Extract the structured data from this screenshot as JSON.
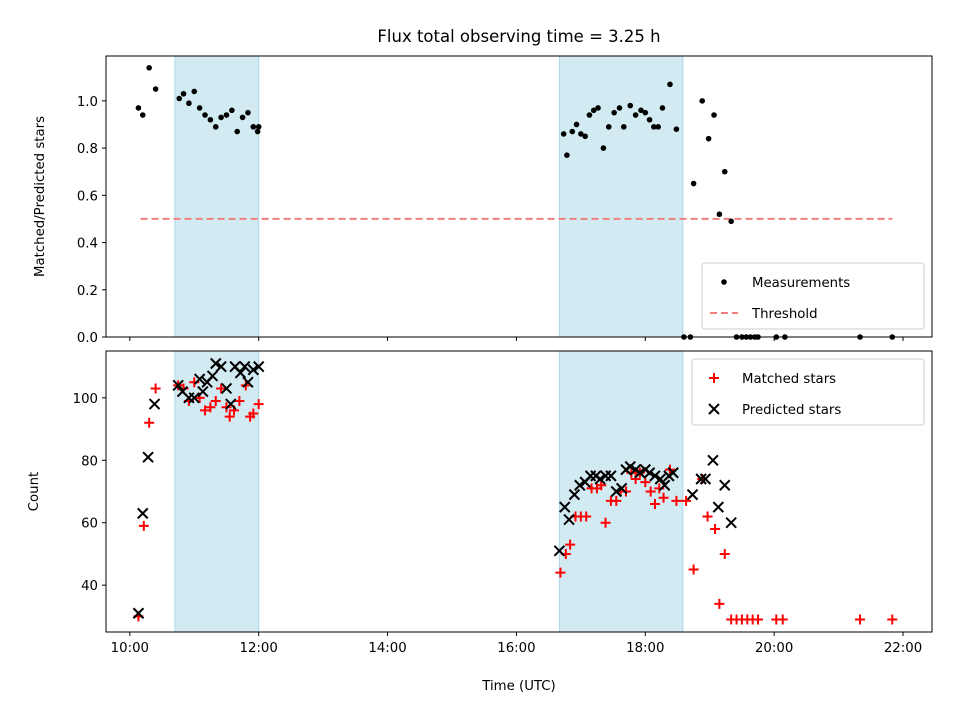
{
  "figure": {
    "title": "Flux total observing time = 3.25 h",
    "xlabel": "Time (UTC)"
  },
  "colors": {
    "span_fill": "#add8e6",
    "measurement": "#000000",
    "threshold": "#f08080",
    "matched": "#ff0000",
    "predicted": "#000000"
  },
  "chart_data": [
    {
      "type": "scatter",
      "panel": "top",
      "ylabel": "Matched/Predicted stars",
      "xlim_hours": [
        9.63,
        22.45
      ],
      "ylim": [
        0,
        1.19
      ],
      "yticks": [
        0.0,
        0.2,
        0.4,
        0.6,
        0.8,
        1.0
      ],
      "x_ticks": [
        "10:00",
        "12:00",
        "14:00",
        "16:00",
        "18:00",
        "20:00",
        "22:00"
      ],
      "grid": false,
      "legend_position": "lower-right",
      "legend": [
        "Measurements",
        "Threshold"
      ],
      "shaded_intervals": [
        [
          "10:42",
          "12:00"
        ],
        [
          "16:40",
          "18:35"
        ]
      ],
      "threshold": {
        "value": 0.5,
        "x_range": [
          "10:10",
          "21:50"
        ]
      },
      "series": [
        {
          "name": "Measurements",
          "marker": "dot",
          "points": [
            [
              "10:08",
              0.97
            ],
            [
              "10:12",
              0.94
            ],
            [
              "10:18",
              1.14
            ],
            [
              "10:24",
              1.05
            ],
            [
              "10:46",
              1.01
            ],
            [
              "10:50",
              1.03
            ],
            [
              "10:55",
              0.99
            ],
            [
              "11:00",
              1.04
            ],
            [
              "11:05",
              0.97
            ],
            [
              "11:10",
              0.94
            ],
            [
              "11:15",
              0.92
            ],
            [
              "11:20",
              0.89
            ],
            [
              "11:25",
              0.93
            ],
            [
              "11:30",
              0.94
            ],
            [
              "11:35",
              0.96
            ],
            [
              "11:40",
              0.87
            ],
            [
              "11:45",
              0.93
            ],
            [
              "11:50",
              0.95
            ],
            [
              "11:55",
              0.89
            ],
            [
              "11:59",
              0.87
            ],
            [
              "12:00",
              0.89
            ],
            [
              "16:44",
              0.86
            ],
            [
              "16:47",
              0.77
            ],
            [
              "16:52",
              0.87
            ],
            [
              "16:56",
              0.9
            ],
            [
              "17:00",
              0.86
            ],
            [
              "17:04",
              0.85
            ],
            [
              "17:08",
              0.94
            ],
            [
              "17:12",
              0.96
            ],
            [
              "17:16",
              0.97
            ],
            [
              "17:21",
              0.8
            ],
            [
              "17:26",
              0.89
            ],
            [
              "17:31",
              0.95
            ],
            [
              "17:36",
              0.97
            ],
            [
              "17:40",
              0.89
            ],
            [
              "17:46",
              0.98
            ],
            [
              "17:51",
              0.94
            ],
            [
              "17:56",
              0.96
            ],
            [
              "18:00",
              0.95
            ],
            [
              "18:04",
              0.92
            ],
            [
              "18:08",
              0.89
            ],
            [
              "18:12",
              0.89
            ],
            [
              "18:16",
              0.97
            ],
            [
              "18:23",
              1.07
            ],
            [
              "18:29",
              0.88
            ],
            [
              "18:45",
              0.65
            ],
            [
              "18:53",
              1.0
            ],
            [
              "18:59",
              0.84
            ],
            [
              "19:04",
              0.94
            ],
            [
              "19:09",
              0.52
            ],
            [
              "19:14",
              0.7
            ],
            [
              "19:20",
              0.49
            ],
            [
              "18:36",
              0.0
            ],
            [
              "18:42",
              0.0
            ],
            [
              "19:25",
              0.0
            ],
            [
              "19:30",
              0.0
            ],
            [
              "19:34",
              0.0
            ],
            [
              "19:38",
              0.0
            ],
            [
              "19:42",
              0.0
            ],
            [
              "19:45",
              0.0
            ],
            [
              "20:02",
              0.0
            ],
            [
              "20:10",
              0.0
            ],
            [
              "21:20",
              0.0
            ],
            [
              "21:50",
              0.0
            ]
          ]
        }
      ]
    },
    {
      "type": "scatter",
      "panel": "bottom",
      "ylabel": "Count",
      "xlim_hours": [
        9.63,
        22.45
      ],
      "ylim": [
        25,
        115
      ],
      "yticks": [
        40,
        60,
        80,
        100
      ],
      "x_ticks": [
        "10:00",
        "12:00",
        "14:00",
        "16:00",
        "18:00",
        "20:00",
        "22:00"
      ],
      "grid": false,
      "legend_position": "upper-right",
      "legend": [
        "Matched stars",
        "Predicted stars"
      ],
      "shaded_intervals": [
        [
          "10:42",
          "12:00"
        ],
        [
          "16:40",
          "18:35"
        ]
      ],
      "series": [
        {
          "name": "Matched stars",
          "marker": "plus",
          "points": [
            [
              "10:08",
              30
            ],
            [
              "10:13",
              59
            ],
            [
              "10:18",
              92
            ],
            [
              "10:24",
              103
            ],
            [
              "10:45",
              104
            ],
            [
              "10:50",
              103
            ],
            [
              "10:55",
              99
            ],
            [
              "11:00",
              105
            ],
            [
              "11:05",
              100
            ],
            [
              "11:10",
              96
            ],
            [
              "11:15",
              97
            ],
            [
              "11:20",
              99
            ],
            [
              "11:25",
              103
            ],
            [
              "11:30",
              97
            ],
            [
              "11:33",
              94
            ],
            [
              "11:37",
              96
            ],
            [
              "11:42",
              99
            ],
            [
              "11:48",
              104
            ],
            [
              "11:52",
              94
            ],
            [
              "11:55",
              95
            ],
            [
              "12:00",
              98
            ],
            [
              "16:41",
              44
            ],
            [
              "16:46",
              50
            ],
            [
              "16:50",
              53
            ],
            [
              "16:55",
              62
            ],
            [
              "17:00",
              62
            ],
            [
              "17:05",
              62
            ],
            [
              "17:10",
              71
            ],
            [
              "17:15",
              71
            ],
            [
              "17:19",
              72
            ],
            [
              "17:23",
              60
            ],
            [
              "17:28",
              67
            ],
            [
              "17:33",
              67
            ],
            [
              "17:37",
              70
            ],
            [
              "17:42",
              70
            ],
            [
              "17:47",
              76
            ],
            [
              "17:51",
              74
            ],
            [
              "17:55",
              76
            ],
            [
              "18:00",
              73
            ],
            [
              "18:05",
              70
            ],
            [
              "18:09",
              66
            ],
            [
              "18:13",
              71
            ],
            [
              "18:17",
              68
            ],
            [
              "18:23",
              77
            ],
            [
              "18:29",
              67
            ],
            [
              "18:38",
              67
            ],
            [
              "18:45",
              45
            ],
            [
              "18:53",
              74
            ],
            [
              "18:58",
              62
            ],
            [
              "19:05",
              58
            ],
            [
              "19:09",
              34
            ],
            [
              "19:14",
              50
            ],
            [
              "19:20",
              29
            ],
            [
              "19:25",
              29
            ],
            [
              "19:30",
              29
            ],
            [
              "19:35",
              29
            ],
            [
              "19:40",
              29
            ],
            [
              "19:45",
              29
            ],
            [
              "20:02",
              29
            ],
            [
              "20:08",
              29
            ],
            [
              "21:20",
              29
            ],
            [
              "21:50",
              29
            ]
          ]
        },
        {
          "name": "Predicted stars",
          "marker": "x",
          "points": [
            [
              "10:08",
              31
            ],
            [
              "10:12",
              63
            ],
            [
              "10:17",
              81
            ],
            [
              "10:23",
              98
            ],
            [
              "10:45",
              104
            ],
            [
              "10:49",
              102
            ],
            [
              "10:55",
              100
            ],
            [
              "11:00",
              100
            ],
            [
              "11:05",
              106
            ],
            [
              "11:08",
              102
            ],
            [
              "11:12",
              105
            ],
            [
              "11:17",
              107
            ],
            [
              "11:20",
              111
            ],
            [
              "11:25",
              110
            ],
            [
              "11:30",
              103
            ],
            [
              "11:34",
              98
            ],
            [
              "11:38",
              110
            ],
            [
              "11:43",
              108
            ],
            [
              "11:47",
              110
            ],
            [
              "11:50",
              105
            ],
            [
              "11:55",
              109
            ],
            [
              "12:00",
              110
            ],
            [
              "16:40",
              51
            ],
            [
              "16:45",
              65
            ],
            [
              "16:49",
              61
            ],
            [
              "16:54",
              69
            ],
            [
              "16:59",
              72
            ],
            [
              "17:04",
              73
            ],
            [
              "17:09",
              75
            ],
            [
              "17:14",
              75
            ],
            [
              "17:18",
              74
            ],
            [
              "17:23",
              75
            ],
            [
              "17:28",
              75
            ],
            [
              "17:33",
              70
            ],
            [
              "17:38",
              71
            ],
            [
              "17:42",
              77
            ],
            [
              "17:46",
              78
            ],
            [
              "17:51",
              77
            ],
            [
              "17:55",
              76
            ],
            [
              "18:00",
              77
            ],
            [
              "18:04",
              76
            ],
            [
              "18:09",
              75
            ],
            [
              "18:14",
              74
            ],
            [
              "18:18",
              72
            ],
            [
              "18:22",
              75
            ],
            [
              "18:26",
              76
            ],
            [
              "18:44",
              69
            ],
            [
              "18:52",
              74
            ],
            [
              "18:56",
              74
            ],
            [
              "19:03",
              80
            ],
            [
              "19:08",
              65
            ],
            [
              "19:14",
              72
            ],
            [
              "19:20",
              60
            ]
          ]
        }
      ]
    }
  ]
}
